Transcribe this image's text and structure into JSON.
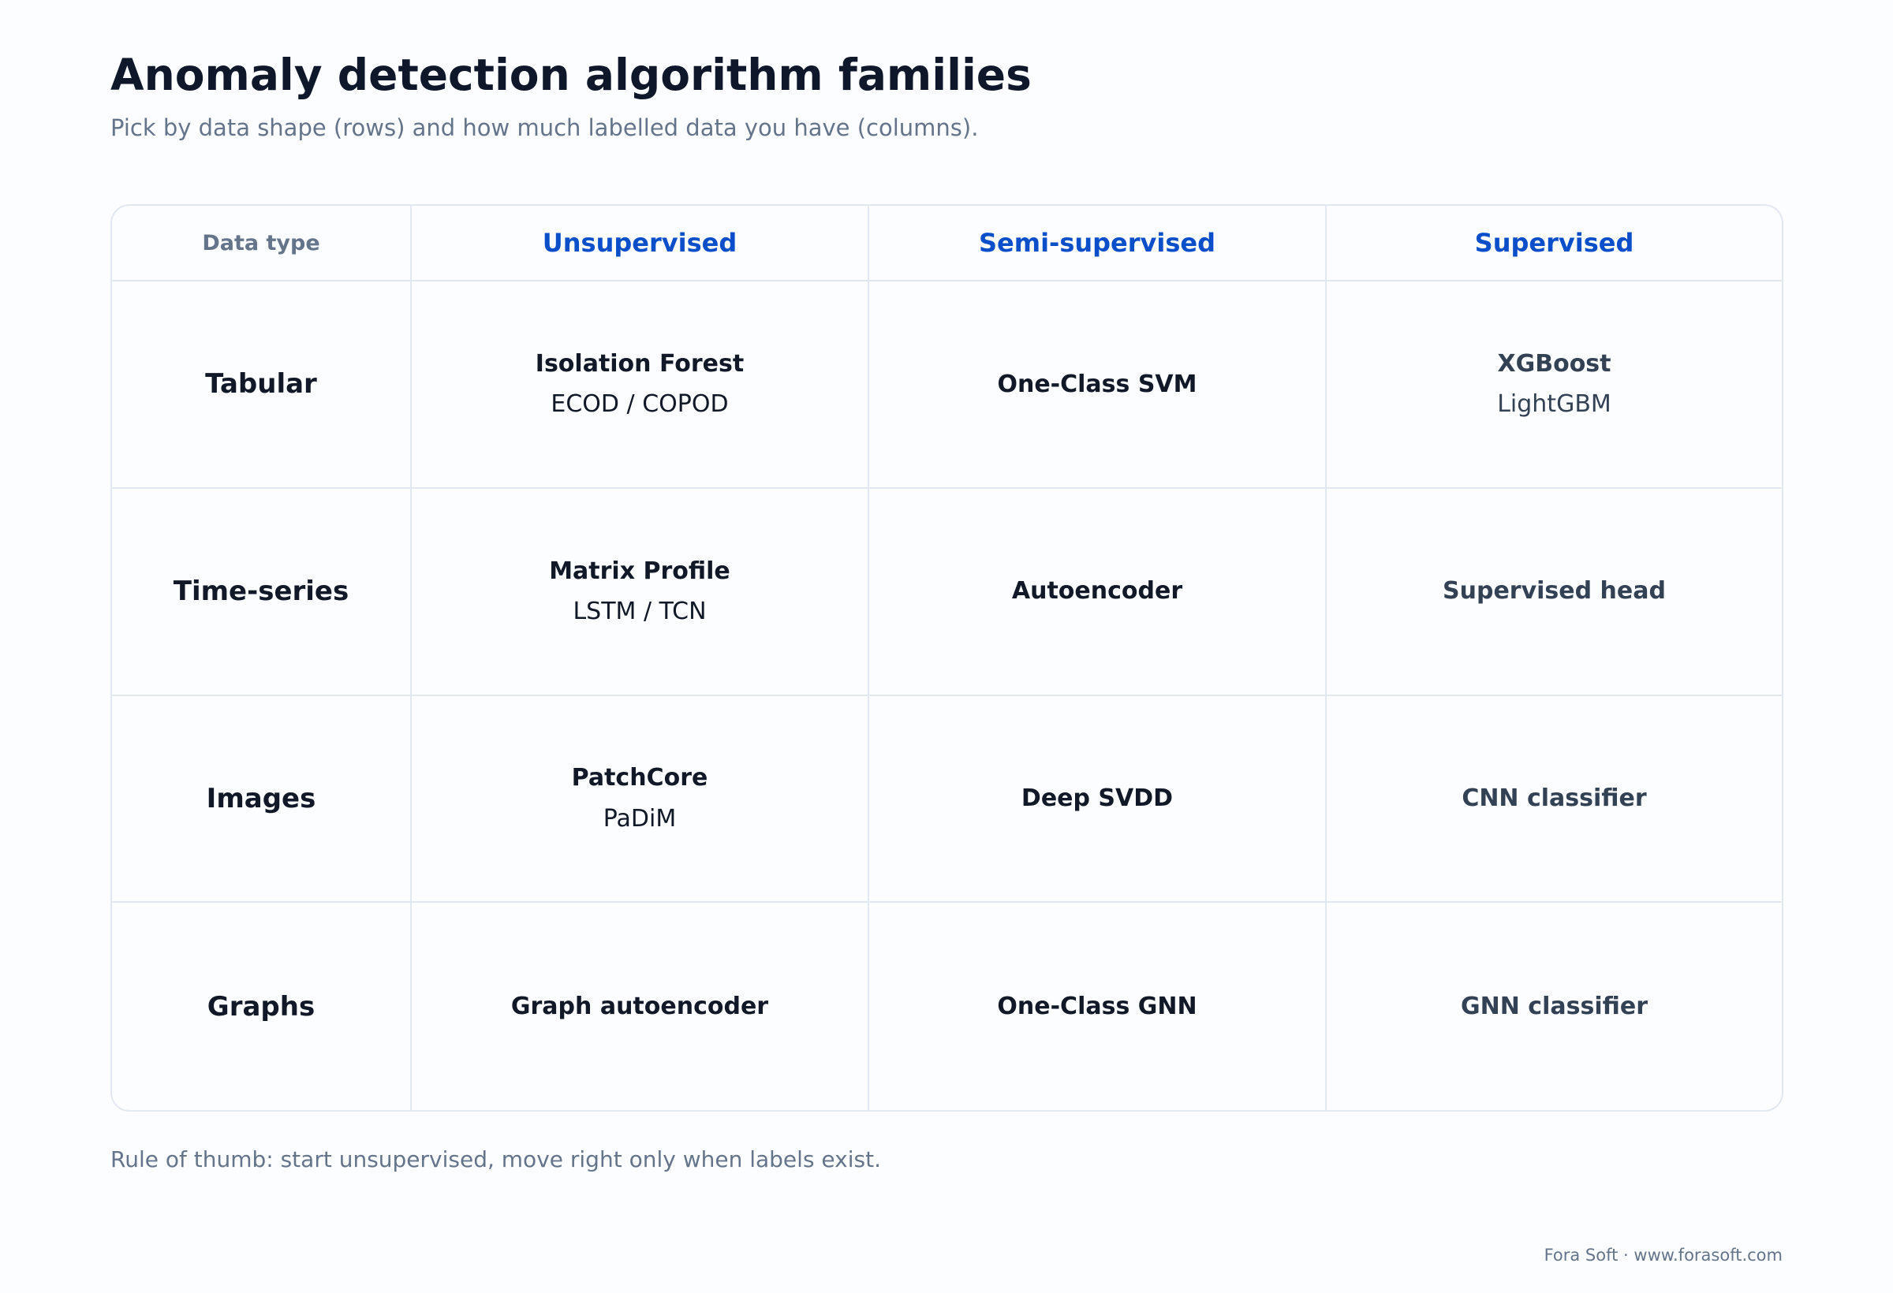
{
  "title": "Anomaly detection algorithm families",
  "subtitle": "Pick by data shape (rows) and how much labelled data you have (columns).",
  "table": {
    "corner_label": "Data type",
    "columns": [
      "Unsupervised",
      "Semi-supervised",
      "Supervised"
    ],
    "rows": [
      {
        "label": "Tabular",
        "cells": [
          {
            "primary": "Isolation Forest",
            "secondary": "ECOD / COPOD"
          },
          {
            "primary": "One-Class SVM",
            "secondary": ""
          },
          {
            "primary": "XGBoost",
            "secondary": "LightGBM"
          }
        ]
      },
      {
        "label": "Time-series",
        "cells": [
          {
            "primary": "Matrix Profile",
            "secondary": "LSTM / TCN"
          },
          {
            "primary": "Autoencoder",
            "secondary": ""
          },
          {
            "primary": "Supervised head",
            "secondary": ""
          }
        ]
      },
      {
        "label": "Images",
        "cells": [
          {
            "primary": "PatchCore",
            "secondary": "PaDiM"
          },
          {
            "primary": "Deep SVDD",
            "secondary": ""
          },
          {
            "primary": "CNN classifier",
            "secondary": ""
          }
        ]
      },
      {
        "label": "Graphs",
        "cells": [
          {
            "primary": "Graph autoencoder",
            "secondary": ""
          },
          {
            "primary": "One-Class GNN",
            "secondary": ""
          },
          {
            "primary": "GNN classifier",
            "secondary": ""
          }
        ]
      }
    ]
  },
  "footnote": "Rule of thumb: start unsupervised, move right only when labels exist.",
  "credit": "Fora Soft · www.forasoft.com",
  "colors": {
    "header_accent": "#0a4fc9",
    "text_dark": "#111827",
    "text_muted": "#64748b",
    "grid_line": "#e2e8f0"
  }
}
